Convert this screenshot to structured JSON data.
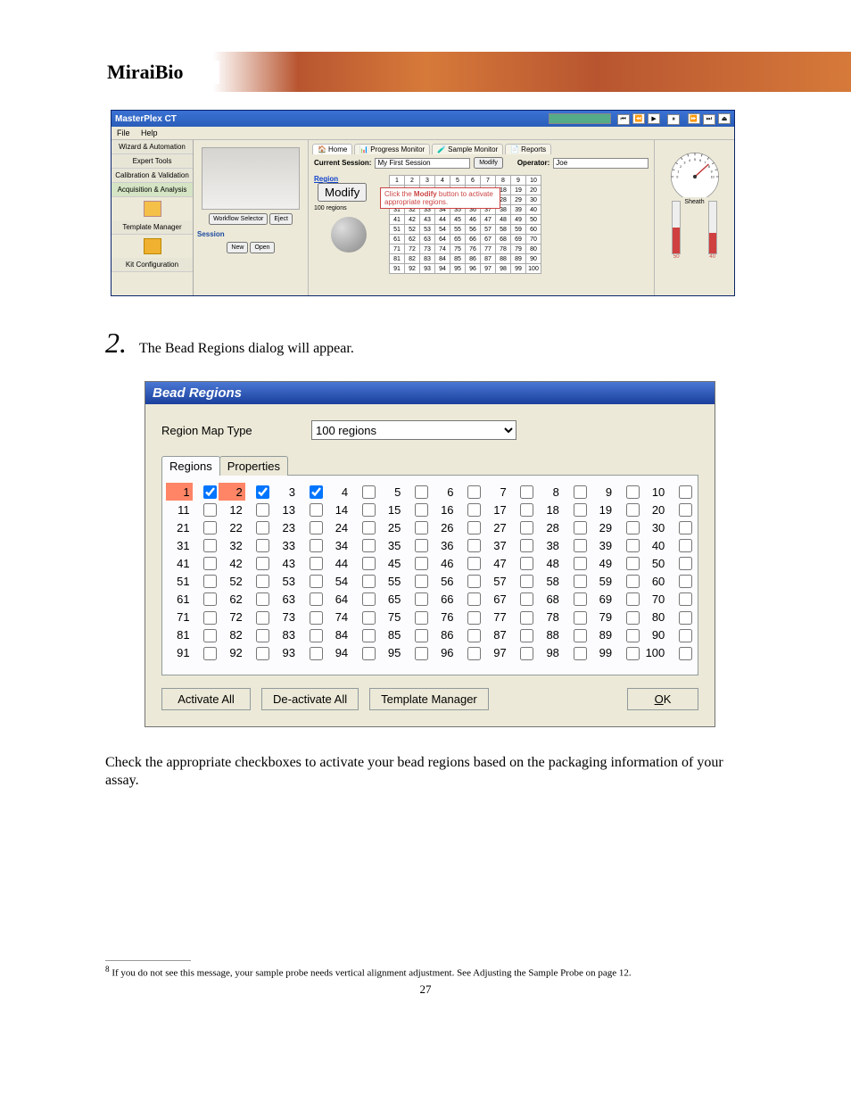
{
  "brand": "MiraiBio",
  "banner": {
    "bg_colors": [
      "#b85530",
      "#d67a3a",
      "#b85530"
    ]
  },
  "app": {
    "title": "MasterPlex CT",
    "menu_items": [
      "File",
      "Help"
    ],
    "media_buttons": [
      "⏮",
      "⏪",
      "▶",
      "⏸",
      "⏩",
      "⏭",
      "⏏"
    ],
    "nav_items": [
      "Wizard & Automation",
      "Expert Tools",
      "Calibration & Validation",
      "Acquisition & Analysis",
      "Template Manager",
      "",
      "Kit Configuration"
    ],
    "workflow_buttons": [
      "Workflow Selector",
      "Eject"
    ],
    "session_label": "Session",
    "session_buttons": [
      "New",
      "Open"
    ],
    "tabs": [
      "Home",
      "Progress Monitor",
      "Sample Monitor",
      "Reports"
    ],
    "current_session_label": "Current Session:",
    "current_session_value": "My First Session",
    "modify_label": "Modify",
    "operator_label": "Operator:",
    "operator_value": "Joe",
    "region_label": "Region",
    "region_count": "100 regions",
    "tooltip": "Click the Modify button to activate appropriate regions.",
    "sheath_label": "Sheath",
    "grid": {
      "cols": 10,
      "rows": 10,
      "start": 1,
      "end": 100
    },
    "gauge": {
      "min": 0,
      "max": 10,
      "major_ticks": [
        0,
        1,
        2,
        3,
        4,
        5,
        6,
        7,
        8,
        9,
        10
      ]
    },
    "thermos": [
      {
        "label": "",
        "color": "#d04040",
        "value": 50,
        "scale": [
          20,
          30,
          40,
          50,
          60,
          70,
          80,
          90
        ]
      },
      {
        "label": "",
        "color": "#d04040",
        "value": 40,
        "scale": [
          30,
          40,
          50,
          60,
          70,
          80
        ]
      }
    ]
  },
  "descr_text": "Check the appropriate checkboxes to activate your bead regions based on the packaging information of your assay.",
  "step_number": "2.",
  "step_caption": "The Bead Regions dialog will appear.",
  "dialog": {
    "title": "Bead Regions",
    "type_label": "Region Map Type",
    "type_value": "100 regions",
    "tabs": [
      "Regions",
      "Properties"
    ],
    "active_tab": 0,
    "grid": {
      "cols": 10,
      "rows": 10,
      "total": 100,
      "highlighted": [
        1,
        2
      ],
      "checked": [
        1,
        2,
        3
      ]
    },
    "buttons": {
      "activate": "Activate All",
      "deactivate": "De-activate All",
      "template": "Template Manager",
      "ok": "OK"
    }
  },
  "footnote_marker": "8",
  "footnote_text": " If you do not see this message, your sample probe needs vertical alignment adjustment. See Adjusting the Sample Probe on page 12.",
  "page_number": "27"
}
